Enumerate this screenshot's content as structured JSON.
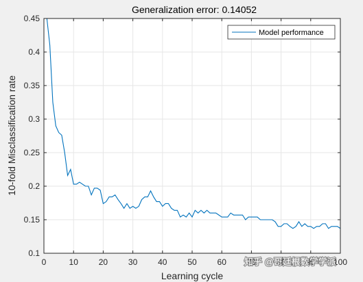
{
  "colors": {
    "background": "#f0f0f0",
    "plot_area": "#ffffff",
    "grid": "#e6e6e6",
    "axes": "#262626",
    "series": "#0072bd"
  },
  "watermark": {
    "text": "知乎 @哥廷根数学学派"
  },
  "chart_data": {
    "type": "line",
    "title": "Generalization error: 0.14052",
    "xlabel": "Learning cycle",
    "ylabel": "10-fold Misclassification rate",
    "xlim": [
      0,
      100
    ],
    "ylim": [
      0.1,
      0.45
    ],
    "xticks": [
      0,
      10,
      20,
      30,
      40,
      50,
      60,
      70,
      80,
      90,
      100
    ],
    "yticks": [
      0.1,
      0.15,
      0.2,
      0.25,
      0.3,
      0.35,
      0.4,
      0.45
    ],
    "xtick_labels": [
      "0",
      "10",
      "20",
      "30",
      "40",
      "50",
      "60",
      "70",
      "80",
      "90",
      "100"
    ],
    "ytick_labels": [
      "0.1",
      "0.15",
      "0.2",
      "0.25",
      "0.3",
      "0.35",
      "0.4",
      "0.45"
    ],
    "grid": true,
    "legend_position": "top-right",
    "series": [
      {
        "name": "Model performance",
        "x": [
          1,
          2,
          3,
          4,
          5,
          6,
          7,
          8,
          9,
          10,
          11,
          12,
          13,
          14,
          15,
          16,
          17,
          18,
          19,
          20,
          21,
          22,
          23,
          24,
          25,
          26,
          27,
          28,
          29,
          30,
          31,
          32,
          33,
          34,
          35,
          36,
          37,
          38,
          39,
          40,
          41,
          42,
          43,
          44,
          45,
          46,
          47,
          48,
          49,
          50,
          51,
          52,
          53,
          54,
          55,
          56,
          57,
          58,
          59,
          60,
          61,
          62,
          63,
          64,
          65,
          66,
          67,
          68,
          69,
          70,
          71,
          72,
          73,
          74,
          75,
          76,
          77,
          78,
          79,
          80,
          81,
          82,
          83,
          84,
          85,
          86,
          87,
          88,
          89,
          90,
          91,
          92,
          93,
          94,
          95,
          96,
          97,
          98,
          99,
          100
        ],
        "y": [
          0.45,
          0.41,
          0.325,
          0.29,
          0.28,
          0.276,
          0.25,
          0.216,
          0.225,
          0.203,
          0.203,
          0.206,
          0.203,
          0.2,
          0.2,
          0.187,
          0.197,
          0.197,
          0.194,
          0.174,
          0.177,
          0.184,
          0.184,
          0.187,
          0.18,
          0.174,
          0.167,
          0.174,
          0.167,
          0.17,
          0.167,
          0.17,
          0.18,
          0.184,
          0.184,
          0.193,
          0.184,
          0.177,
          0.177,
          0.17,
          0.174,
          0.174,
          0.167,
          0.164,
          0.164,
          0.154,
          0.157,
          0.154,
          0.16,
          0.154,
          0.164,
          0.16,
          0.164,
          0.16,
          0.164,
          0.16,
          0.16,
          0.16,
          0.157,
          0.154,
          0.154,
          0.154,
          0.16,
          0.157,
          0.157,
          0.157,
          0.157,
          0.15,
          0.154,
          0.154,
          0.154,
          0.154,
          0.15,
          0.15,
          0.15,
          0.15,
          0.15,
          0.147,
          0.14,
          0.14,
          0.144,
          0.144,
          0.14,
          0.137,
          0.14,
          0.147,
          0.14,
          0.144,
          0.14,
          0.14,
          0.137,
          0.14,
          0.14,
          0.144,
          0.144,
          0.137,
          0.14,
          0.14,
          0.14,
          0.137
        ]
      }
    ]
  }
}
